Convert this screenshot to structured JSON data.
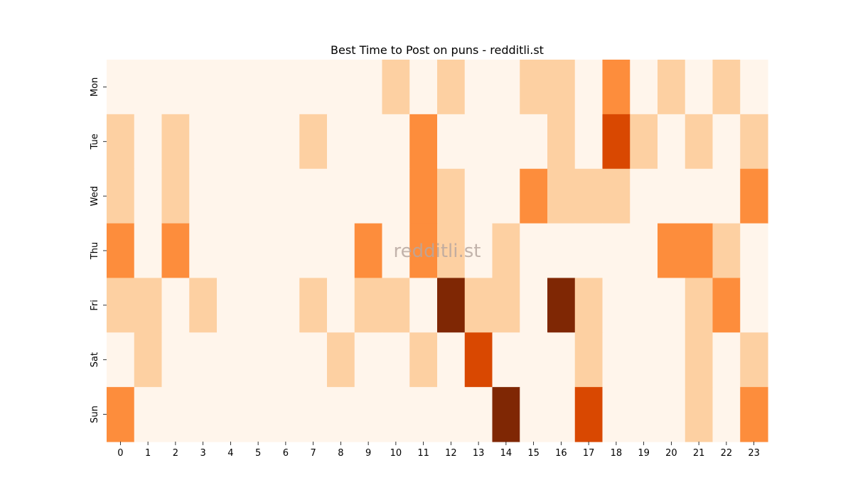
{
  "chart_data": {
    "type": "heatmap",
    "title": "Best Time to Post on puns - redditli.st",
    "watermark": "redditli.st",
    "x": [
      "0",
      "1",
      "2",
      "3",
      "4",
      "5",
      "6",
      "7",
      "8",
      "9",
      "10",
      "11",
      "12",
      "13",
      "14",
      "15",
      "16",
      "17",
      "18",
      "19",
      "20",
      "21",
      "22",
      "23"
    ],
    "y": [
      "Mon",
      "Tue",
      "Wed",
      "Thu",
      "Fri",
      "Sat",
      "Sun"
    ],
    "colormap": "Oranges",
    "color_range": [
      0,
      4
    ],
    "values": [
      [
        0,
        0,
        0,
        0,
        0,
        0,
        0,
        0,
        0,
        0,
        1,
        0,
        1,
        0,
        0,
        1,
        1,
        0,
        2,
        0,
        1,
        0,
        1,
        0
      ],
      [
        1,
        0,
        1,
        0,
        0,
        0,
        0,
        1,
        0,
        0,
        0,
        2,
        0,
        0,
        0,
        0,
        1,
        0,
        3,
        1,
        0,
        1,
        0,
        1
      ],
      [
        1,
        0,
        1,
        0,
        0,
        0,
        0,
        0,
        0,
        0,
        0,
        2,
        1,
        0,
        0,
        2,
        1,
        1,
        1,
        0,
        0,
        0,
        0,
        2
      ],
      [
        2,
        0,
        2,
        0,
        0,
        0,
        0,
        0,
        0,
        2,
        0,
        2,
        1,
        0,
        1,
        0,
        0,
        0,
        0,
        0,
        2,
        2,
        1,
        0
      ],
      [
        1,
        1,
        0,
        1,
        0,
        0,
        0,
        1,
        0,
        1,
        1,
        0,
        4,
        1,
        1,
        0,
        4,
        1,
        0,
        0,
        0,
        1,
        2,
        0
      ],
      [
        0,
        1,
        0,
        0,
        0,
        0,
        0,
        0,
        1,
        0,
        0,
        1,
        0,
        3,
        0,
        0,
        0,
        1,
        0,
        0,
        0,
        1,
        0,
        1
      ],
      [
        2,
        0,
        0,
        0,
        0,
        0,
        0,
        0,
        0,
        0,
        0,
        0,
        0,
        0,
        4,
        0,
        0,
        3,
        0,
        0,
        0,
        1,
        0,
        2
      ]
    ],
    "palette": [
      "#fff5eb",
      "#fdd0a2",
      "#fd8d3c",
      "#d94801",
      "#7f2704"
    ],
    "grid": false,
    "legend": "none"
  }
}
